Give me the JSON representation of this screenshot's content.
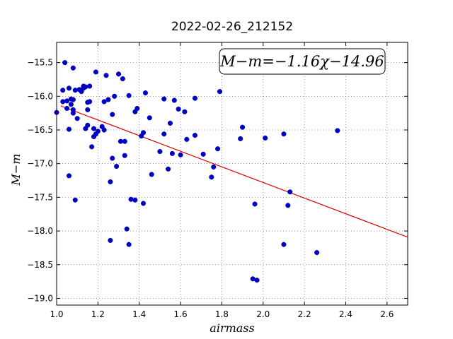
{
  "chart_data": {
    "type": "scatter",
    "title": "2022-02-26_212152",
    "xlabel": "airmass",
    "ylabel": "M−m",
    "xlim": [
      1.0,
      2.7
    ],
    "ylim": [
      -19.1,
      -15.2
    ],
    "ylim_inverted": true,
    "grid": true,
    "xticks": [
      1.0,
      1.2,
      1.4,
      1.6,
      1.8,
      2.0,
      2.2,
      2.4,
      2.6
    ],
    "yticks": [
      -15.5,
      -16.0,
      -16.5,
      -17.0,
      -17.5,
      -18.0,
      -18.5,
      -19.0
    ],
    "annotation": "M−m=−1.16χ−14.96",
    "fit": {
      "slope": -1.16,
      "intercept": -14.96,
      "color": "#dd0000"
    },
    "point_color": "#0000cc",
    "points": [
      [
        1.0,
        -16.24
      ],
      [
        1.03,
        -16.08
      ],
      [
        1.03,
        -15.91
      ],
      [
        1.04,
        -15.5
      ],
      [
        1.05,
        -16.07
      ],
      [
        1.05,
        -16.18
      ],
      [
        1.06,
        -15.88
      ],
      [
        1.06,
        -16.49
      ],
      [
        1.06,
        -17.18
      ],
      [
        1.07,
        -16.04
      ],
      [
        1.07,
        -16.12
      ],
      [
        1.08,
        -16.2
      ],
      [
        1.08,
        -16.25
      ],
      [
        1.08,
        -15.58
      ],
      [
        1.08,
        -16.05
      ],
      [
        1.09,
        -15.91
      ],
      [
        1.09,
        -17.54
      ],
      [
        1.1,
        -16.33
      ],
      [
        1.11,
        -15.9
      ],
      [
        1.12,
        -15.93
      ],
      [
        1.13,
        -15.88
      ],
      [
        1.13,
        -15.85
      ],
      [
        1.14,
        -15.86
      ],
      [
        1.14,
        -16.48
      ],
      [
        1.15,
        -16.09
      ],
      [
        1.15,
        -16.43
      ],
      [
        1.15,
        -16.2
      ],
      [
        1.16,
        -15.85
      ],
      [
        1.16,
        -16.08
      ],
      [
        1.17,
        -16.75
      ],
      [
        1.18,
        -16.6
      ],
      [
        1.18,
        -16.48
      ],
      [
        1.19,
        -15.64
      ],
      [
        1.19,
        -16.56
      ],
      [
        1.2,
        -16.52
      ],
      [
        1.22,
        -16.45
      ],
      [
        1.23,
        -16.5
      ],
      [
        1.23,
        -16.08
      ],
      [
        1.24,
        -15.69
      ],
      [
        1.25,
        -16.05
      ],
      [
        1.26,
        -18.14
      ],
      [
        1.26,
        -17.27
      ],
      [
        1.27,
        -16.27
      ],
      [
        1.27,
        -16.92
      ],
      [
        1.28,
        -16.0
      ],
      [
        1.29,
        -17.04
      ],
      [
        1.3,
        -15.67
      ],
      [
        1.31,
        -16.67
      ],
      [
        1.32,
        -15.74
      ],
      [
        1.33,
        -16.67
      ],
      [
        1.33,
        -16.88
      ],
      [
        1.34,
        -17.97
      ],
      [
        1.35,
        -18.2
      ],
      [
        1.35,
        -15.99
      ],
      [
        1.36,
        -17.53
      ],
      [
        1.38,
        -17.54
      ],
      [
        1.38,
        -16.23
      ],
      [
        1.39,
        -16.18
      ],
      [
        1.41,
        -16.59
      ],
      [
        1.42,
        -16.54
      ],
      [
        1.42,
        -17.59
      ],
      [
        1.43,
        -15.95
      ],
      [
        1.45,
        -16.32
      ],
      [
        1.46,
        -17.16
      ],
      [
        1.5,
        -16.82
      ],
      [
        1.52,
        -16.04
      ],
      [
        1.52,
        -16.56
      ],
      [
        1.54,
        -17.08
      ],
      [
        1.55,
        -16.4
      ],
      [
        1.56,
        -16.85
      ],
      [
        1.57,
        -16.06
      ],
      [
        1.59,
        -16.19
      ],
      [
        1.6,
        -16.87
      ],
      [
        1.62,
        -16.23
      ],
      [
        1.63,
        -16.64
      ],
      [
        1.67,
        -16.58
      ],
      [
        1.67,
        -16.03
      ],
      [
        1.71,
        -16.86
      ],
      [
        1.75,
        -17.2
      ],
      [
        1.76,
        -17.05
      ],
      [
        1.78,
        -16.78
      ],
      [
        1.79,
        -15.93
      ],
      [
        1.89,
        -16.63
      ],
      [
        1.9,
        -16.46
      ],
      [
        1.95,
        -18.71
      ],
      [
        1.96,
        -17.6
      ],
      [
        1.97,
        -18.73
      ],
      [
        2.01,
        -16.62
      ],
      [
        2.1,
        -16.56
      ],
      [
        2.1,
        -18.2
      ],
      [
        2.12,
        -17.62
      ],
      [
        2.13,
        -17.42
      ],
      [
        2.26,
        -18.32
      ],
      [
        2.36,
        -16.51
      ]
    ]
  }
}
